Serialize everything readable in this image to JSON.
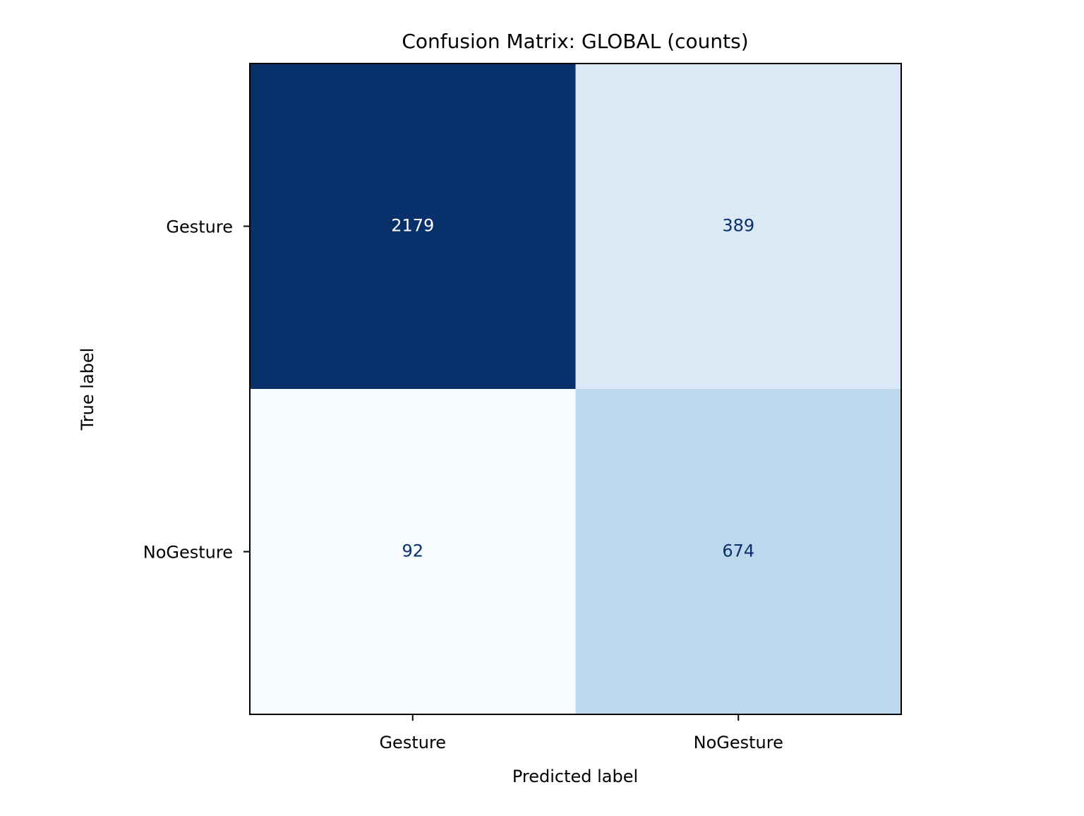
{
  "chart_data": {
    "type": "heatmap",
    "title": "Confusion Matrix: GLOBAL (counts)",
    "xlabel": "Predicted label",
    "ylabel": "True label",
    "x_categories": [
      "Gesture",
      "NoGesture"
    ],
    "y_categories": [
      "Gesture",
      "NoGesture"
    ],
    "values": [
      [
        2179,
        389
      ],
      [
        92,
        674
      ]
    ],
    "colormap": "Blues",
    "color_range": [
      92,
      2179
    ],
    "colorbar": false,
    "grid": false
  }
}
